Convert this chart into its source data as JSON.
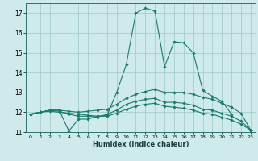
{
  "xlabel": "Humidex (Indice chaleur)",
  "bg_color": "#ceeaea",
  "line_color": "#1a7a6e",
  "grid_color": "#a0c8c8",
  "xlim": [
    -0.5,
    23.5
  ],
  "ylim": [
    11,
    17.5
  ],
  "yticks": [
    11,
    12,
    13,
    14,
    15,
    16,
    17
  ],
  "xticks": [
    0,
    1,
    2,
    3,
    4,
    5,
    6,
    7,
    8,
    9,
    10,
    11,
    12,
    13,
    14,
    15,
    16,
    17,
    18,
    19,
    20,
    21,
    22,
    23
  ],
  "lines": [
    {
      "x": [
        0,
        1,
        2,
        3,
        4,
        5,
        6,
        7,
        8,
        9,
        10,
        11,
        12,
        13,
        14,
        15,
        16,
        17,
        18,
        19,
        20,
        21
      ],
      "y": [
        11.9,
        12.0,
        12.1,
        12.1,
        11.05,
        11.65,
        11.65,
        11.8,
        11.85,
        13.0,
        14.4,
        17.0,
        17.25,
        17.1,
        14.3,
        15.55,
        15.5,
        15.0,
        13.1,
        12.8,
        12.55,
        11.9
      ]
    },
    {
      "x": [
        0,
        1,
        2,
        3,
        4,
        5,
        6,
        7,
        8,
        9,
        10,
        11,
        12,
        13,
        14,
        15,
        16,
        17,
        18,
        19,
        20,
        21,
        22,
        23
      ],
      "y": [
        11.9,
        12.0,
        12.1,
        12.1,
        12.05,
        12.0,
        12.05,
        12.1,
        12.15,
        12.4,
        12.7,
        12.9,
        13.05,
        13.15,
        13.0,
        13.0,
        13.0,
        12.9,
        12.75,
        12.65,
        12.45,
        12.25,
        11.95,
        11.1
      ]
    },
    {
      "x": [
        0,
        1,
        2,
        3,
        4,
        5,
        6,
        7,
        8,
        9,
        10,
        11,
        12,
        13,
        14,
        15,
        16,
        17,
        18,
        19,
        20,
        21,
        22,
        23
      ],
      "y": [
        11.9,
        12.0,
        12.1,
        12.05,
        11.9,
        11.8,
        11.8,
        11.75,
        11.9,
        12.1,
        12.4,
        12.55,
        12.65,
        12.7,
        12.5,
        12.5,
        12.45,
        12.35,
        12.15,
        12.1,
        11.95,
        11.8,
        11.55,
        11.1
      ]
    },
    {
      "x": [
        0,
        1,
        2,
        3,
        4,
        5,
        6,
        7,
        8,
        9,
        10,
        11,
        12,
        13,
        14,
        15,
        16,
        17,
        18,
        19,
        20,
        21,
        22,
        23
      ],
      "y": [
        11.9,
        12.0,
        12.05,
        12.0,
        11.95,
        11.9,
        11.85,
        11.8,
        11.8,
        11.95,
        12.15,
        12.3,
        12.4,
        12.45,
        12.3,
        12.25,
        12.2,
        12.1,
        11.95,
        11.9,
        11.75,
        11.6,
        11.4,
        11.1
      ]
    }
  ]
}
